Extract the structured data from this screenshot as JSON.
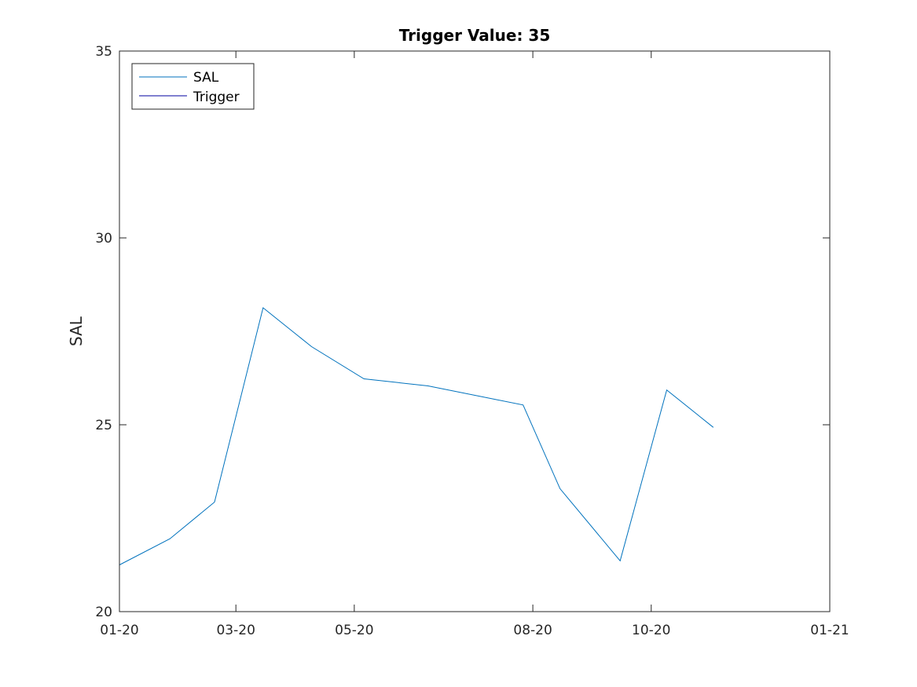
{
  "chart_data": {
    "type": "line",
    "title": "Trigger Value: 35",
    "xlabel": "",
    "ylabel": "SAL",
    "x_type": "date",
    "xlim": [
      "2020-01-01",
      "2021-01-01"
    ],
    "ylim": [
      20,
      35
    ],
    "x_ticks": [
      {
        "date": "2020-01-01",
        "label": "01-20"
      },
      {
        "date": "2020-03-01",
        "label": "03-20"
      },
      {
        "date": "2020-05-01",
        "label": "05-20"
      },
      {
        "date": "2020-08-01",
        "label": "08-20"
      },
      {
        "date": "2020-10-01",
        "label": "10-20"
      },
      {
        "date": "2021-01-01",
        "label": "01-21"
      }
    ],
    "y_ticks": [
      {
        "value": 20,
        "label": "20"
      },
      {
        "value": 25,
        "label": "25"
      },
      {
        "value": 30,
        "label": "30"
      },
      {
        "value": 35,
        "label": "35"
      }
    ],
    "grid": false,
    "legend_position": "top-left",
    "series": [
      {
        "name": "SAL",
        "color": "#0072BD",
        "points": [
          {
            "x": "2020-01-01",
            "y": 21.25
          },
          {
            "x": "2020-01-27",
            "y": 21.95
          },
          {
            "x": "2020-02-19",
            "y": 22.93
          },
          {
            "x": "2020-03-15",
            "y": 28.13
          },
          {
            "x": "2020-04-09",
            "y": 27.09
          },
          {
            "x": "2020-05-06",
            "y": 26.23
          },
          {
            "x": "2020-06-08",
            "y": 26.04
          },
          {
            "x": "2020-07-27",
            "y": 25.53
          },
          {
            "x": "2020-08-15",
            "y": 23.29
          },
          {
            "x": "2020-09-15",
            "y": 21.36
          },
          {
            "x": "2020-10-09",
            "y": 25.93
          },
          {
            "x": "2020-11-02",
            "y": 24.93
          }
        ]
      },
      {
        "name": "Trigger",
        "color": "#0000A0",
        "points": [
          {
            "x": "2020-01-01",
            "y": 35
          },
          {
            "x": "2020-11-02",
            "y": 35
          }
        ]
      }
    ]
  }
}
